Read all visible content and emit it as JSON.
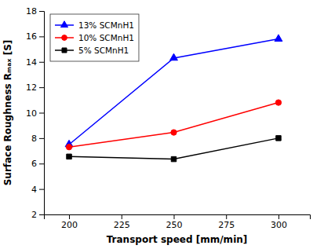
{
  "chart_data": {
    "type": "line",
    "x": [
      200,
      250,
      300
    ],
    "series": [
      {
        "name": "13% SCMnH1",
        "color": "#0000FF",
        "marker": "triangle",
        "values": [
          7.5,
          14.3,
          15.8
        ]
      },
      {
        "name": "10% SCMnH1",
        "color": "#FF0000",
        "marker": "circle",
        "values": [
          7.3,
          8.45,
          10.8
        ]
      },
      {
        "name": "5% SCMnH1",
        "color": "#000000",
        "marker": "square",
        "values": [
          6.55,
          6.35,
          8.0
        ]
      }
    ],
    "xlabel": "Transport speed [mm/min]",
    "ylabel": "Surface Roughness Rₘₐₓ [S]",
    "xlim": [
      188,
      315
    ],
    "ylim": [
      2,
      18
    ],
    "xticks": [
      200,
      225,
      250,
      275,
      300
    ],
    "yticks": [
      2,
      4,
      6,
      8,
      10,
      12,
      14,
      16,
      18
    ],
    "legend": "upper left"
  }
}
